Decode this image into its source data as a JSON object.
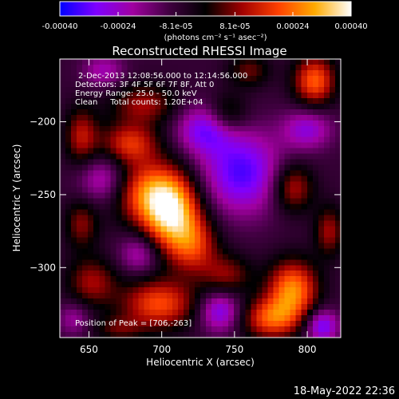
{
  "chart_data": {
    "type": "heatmap",
    "title": "Reconstructed RHESSI Image",
    "xlabel": "Heliocentric X (arcsec)",
    "ylabel": "Heliocentric Y (arcsec)",
    "xlim": [
      630,
      823
    ],
    "ylim": [
      -348,
      -157
    ],
    "x_ticks": [
      650,
      700,
      750,
      800
    ],
    "y_ticks": [
      -200,
      -250,
      -300
    ],
    "colorbar": {
      "range": [
        -0.0004,
        0.0004
      ],
      "tick_values": [
        -0.0004,
        -0.00024,
        -8.1e-05,
        8.1e-05,
        0.00024,
        0.0004
      ],
      "tick_labels": [
        "-0.00040",
        "-0.00024",
        "-8.1e-05",
        "8.1e-05",
        "0.00024",
        "0.00040"
      ],
      "unit_label": "(photons cm⁻² s⁻¹ asec⁻²)",
      "colors": [
        "#0000ff",
        "#7f00ff",
        "#a000a0",
        "#000000",
        "#a00000",
        "#ff4000",
        "#ff9900",
        "#ffff66",
        "#ffffff"
      ]
    },
    "info_lines": [
      "2-Dec-2013 12:08:56.000 to 12:14:56.000",
      "Detectors: 3F 4F 5F 6F 7F 8F, Att 0",
      "Energy Range: 25.0 - 50.0 keV",
      "Clean     Total counts: 1.20E+04"
    ],
    "peak_label": "Position of Peak = [706,-263]",
    "peak": [
      706,
      -263
    ],
    "sources": [
      {
        "x": 706,
        "y": -263,
        "amp": 0.0004,
        "sx": 14,
        "sy": 18
      },
      {
        "x": 690,
        "y": -248,
        "amp": 0.00026,
        "sx": 18,
        "sy": 15
      },
      {
        "x": 722,
        "y": -285,
        "amp": 0.00022,
        "sx": 12,
        "sy": 14
      },
      {
        "x": 678,
        "y": -215,
        "amp": 0.00024,
        "sx": 14,
        "sy": 10
      },
      {
        "x": 688,
        "y": -188,
        "amp": 0.00018,
        "sx": 16,
        "sy": 10
      },
      {
        "x": 645,
        "y": -210,
        "amp": 0.0002,
        "sx": 8,
        "sy": 14
      },
      {
        "x": 645,
        "y": -270,
        "amp": 0.00016,
        "sx": 8,
        "sy": 12
      },
      {
        "x": 652,
        "y": -310,
        "amp": 0.00018,
        "sx": 12,
        "sy": 12
      },
      {
        "x": 698,
        "y": -325,
        "amp": 0.00028,
        "sx": 18,
        "sy": 12
      },
      {
        "x": 745,
        "y": -305,
        "amp": 0.00016,
        "sx": 12,
        "sy": 10
      },
      {
        "x": 790,
        "y": -315,
        "amp": 0.00034,
        "sx": 12,
        "sy": 14
      },
      {
        "x": 775,
        "y": -335,
        "amp": 0.00028,
        "sx": 14,
        "sy": 10
      },
      {
        "x": 805,
        "y": -172,
        "amp": 0.0003,
        "sx": 10,
        "sy": 12
      },
      {
        "x": 790,
        "y": -245,
        "amp": 0.00022,
        "sx": 10,
        "sy": 12
      },
      {
        "x": 815,
        "y": -275,
        "amp": 0.00018,
        "sx": 7,
        "sy": 12
      },
      {
        "x": 745,
        "y": -195,
        "amp": 0.00016,
        "sx": 10,
        "sy": 10
      },
      {
        "x": 760,
        "y": -165,
        "amp": 0.00014,
        "sx": 10,
        "sy": 8
      },
      {
        "x": 670,
        "y": -342,
        "amp": 0.00012,
        "sx": 12,
        "sy": 6
      },
      {
        "x": 755,
        "y": -235,
        "amp": -0.00026,
        "sx": 20,
        "sy": 20
      },
      {
        "x": 730,
        "y": -205,
        "amp": -0.00022,
        "sx": 14,
        "sy": 12
      },
      {
        "x": 660,
        "y": -240,
        "amp": -0.00018,
        "sx": 12,
        "sy": 12
      },
      {
        "x": 800,
        "y": -205,
        "amp": -0.00018,
        "sx": 12,
        "sy": 10
      },
      {
        "x": 685,
        "y": -290,
        "amp": -0.00016,
        "sx": 10,
        "sy": 10
      },
      {
        "x": 740,
        "y": -330,
        "amp": -0.00022,
        "sx": 10,
        "sy": 10
      },
      {
        "x": 810,
        "y": -340,
        "amp": -0.00024,
        "sx": 8,
        "sy": 8
      },
      {
        "x": 640,
        "y": -335,
        "amp": -0.00012,
        "sx": 8,
        "sy": 8
      },
      {
        "x": 660,
        "y": -165,
        "amp": -0.00014,
        "sx": 10,
        "sy": 8
      }
    ],
    "grid": false
  },
  "timestamp": "18-May-2022 22:36"
}
